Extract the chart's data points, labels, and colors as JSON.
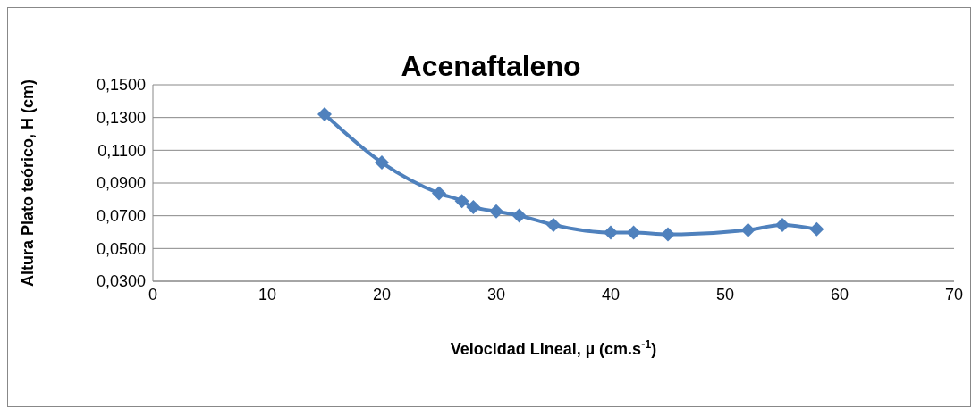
{
  "chart_data": {
    "type": "line",
    "title": "Acenaftaleno",
    "xlabel": "Velocidad Lineal, µ (cm.s$^{-1}$)",
    "ylabel": "Altura Plato teórico, H (cm)",
    "x": [
      15,
      20,
      25,
      27,
      28,
      30,
      32,
      35,
      40,
      42,
      45,
      52,
      55,
      58
    ],
    "series": [
      {
        "color": "#4f81bd",
        "values": [
          0.132,
          0.1025,
          0.0837,
          0.079,
          0.0753,
          0.0727,
          0.0701,
          0.0644,
          0.0597,
          0.0597,
          0.0586,
          0.0612,
          0.0644,
          0.0618
        ]
      }
    ],
    "xlim": [
      0,
      70
    ],
    "xticks": [
      0,
      10,
      20,
      30,
      40,
      50,
      60,
      70
    ],
    "ylim": [
      0.03,
      0.15
    ],
    "yticks": [
      {
        "value": 0.03,
        "label": "0,0300"
      },
      {
        "value": 0.05,
        "label": "0,0500"
      },
      {
        "value": 0.07,
        "label": "0,0700"
      },
      {
        "value": 0.09,
        "label": "0,0900"
      },
      {
        "value": 0.11,
        "label": "0,1100"
      },
      {
        "value": 0.13,
        "label": "0,1300"
      },
      {
        "value": 0.15,
        "label": "0,1500"
      }
    ],
    "grid": "y",
    "marker": "diamond",
    "line_style": "solid"
  }
}
